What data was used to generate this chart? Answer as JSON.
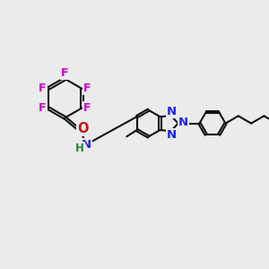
{
  "bg_color": "#ebebeb",
  "bond_color": "#111111",
  "N_color": "#2222ee",
  "O_color": "#cc1111",
  "F_color": "#cc00cc",
  "H_color": "#228833",
  "lw": 1.5,
  "dbo": 0.07,
  "fs": 9.5,
  "xlim": [
    -1.5,
    13.0
  ],
  "ylim": [
    -1.0,
    9.5
  ]
}
